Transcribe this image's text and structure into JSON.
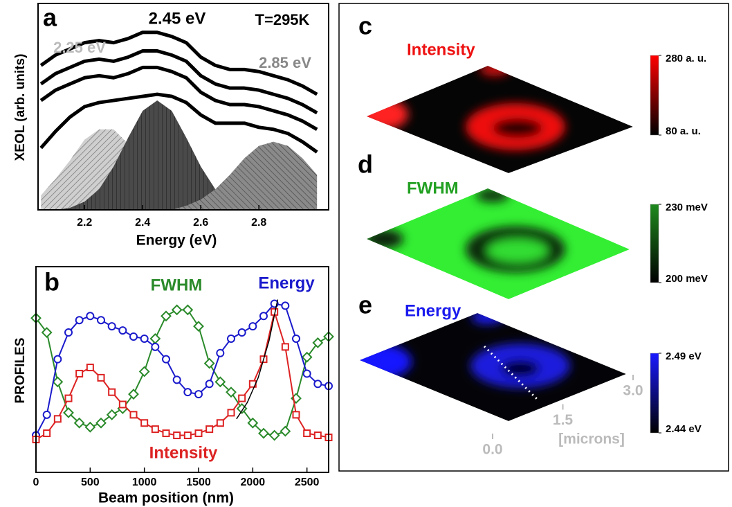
{
  "chart_data": [
    {
      "type": "line",
      "label": "a",
      "xlabel": "Energy (eV)",
      "ylabel": "XEOL (arb. units)",
      "x": [
        2.05,
        2.1,
        2.15,
        2.2,
        2.25,
        2.3,
        2.35,
        2.4,
        2.45,
        2.5,
        2.55,
        2.6,
        2.65,
        2.7,
        2.75,
        2.8,
        2.85,
        2.9,
        2.95,
        3.0
      ],
      "xlim": [
        2.04,
        3.04
      ],
      "xticks": [
        2.2,
        2.4,
        2.6,
        2.8
      ],
      "ylim": [
        0,
        1
      ],
      "series": [
        {
          "color": "#000000",
          "values": [
            0.7,
            0.75,
            0.78,
            0.81,
            0.82,
            0.81,
            0.83,
            0.86,
            0.86,
            0.84,
            0.81,
            0.74,
            0.7,
            0.68,
            0.68,
            0.67,
            0.65,
            0.63,
            0.6,
            0.56
          ]
        },
        {
          "color": "#000000",
          "values": [
            0.61,
            0.66,
            0.69,
            0.72,
            0.73,
            0.72,
            0.74,
            0.77,
            0.77,
            0.75,
            0.72,
            0.65,
            0.61,
            0.59,
            0.59,
            0.58,
            0.56,
            0.54,
            0.51,
            0.47
          ]
        },
        {
          "color": "#000000",
          "values": [
            0.53,
            0.58,
            0.61,
            0.64,
            0.65,
            0.64,
            0.66,
            0.69,
            0.69,
            0.67,
            0.64,
            0.57,
            0.53,
            0.51,
            0.51,
            0.5,
            0.48,
            0.46,
            0.43,
            0.39
          ]
        },
        {
          "color": "#000000",
          "values": [
            0.3,
            0.38,
            0.45,
            0.5,
            0.52,
            0.53,
            0.54,
            0.55,
            0.56,
            0.55,
            0.52,
            0.46,
            0.42,
            0.42,
            0.42,
            0.4,
            0.39,
            0.37,
            0.33,
            0.28
          ]
        }
      ],
      "fills": [
        {
          "color": "#cfcfcf",
          "values": [
            0.07,
            0.15,
            0.24,
            0.34,
            0.39,
            0.39,
            0.32,
            0.22,
            0.13,
            0.06,
            0.03,
            0.01,
            0,
            0,
            0,
            0,
            0,
            0,
            0,
            0
          ]
        },
        {
          "color": "#4a4a4a",
          "values": [
            0,
            0,
            0.01,
            0.04,
            0.1,
            0.21,
            0.35,
            0.48,
            0.53,
            0.48,
            0.35,
            0.21,
            0.1,
            0.04,
            0,
            0,
            0,
            0,
            0,
            0
          ]
        },
        {
          "color": "#8a8a8a",
          "values": [
            0,
            0,
            0,
            0,
            0,
            0,
            0,
            0,
            0,
            0,
            0.02,
            0.05,
            0.1,
            0.17,
            0.25,
            0.31,
            0.33,
            0.31,
            0.25,
            0.17
          ]
        }
      ],
      "annotations": [
        {
          "text": "2.45 eV",
          "color": "#000000"
        },
        {
          "text": "T=295K",
          "color": "#000000"
        },
        {
          "text": "2.25 eV",
          "color": "#bbbbbb"
        },
        {
          "text": "2.85 eV",
          "color": "#888888"
        }
      ]
    },
    {
      "type": "line",
      "label": "b",
      "xlabel": "Beam position (nm)",
      "ylabel": "PROFILES",
      "x": [
        0,
        100,
        200,
        300,
        400,
        500,
        600,
        700,
        800,
        900,
        1000,
        1100,
        1200,
        1300,
        1400,
        1500,
        1600,
        1700,
        1800,
        1900,
        2000,
        2100,
        2200,
        2300,
        2400,
        2500,
        2600,
        2700
      ],
      "xlim": [
        0,
        2700
      ],
      "xticks": [
        0,
        500,
        1000,
        1500,
        2000,
        2500
      ],
      "ylim": [
        0,
        1
      ],
      "series": [
        {
          "name": "FWHM",
          "color": "#2a8a2a",
          "marker": "diamond",
          "values": [
            0.75,
            0.68,
            0.44,
            0.29,
            0.24,
            0.22,
            0.24,
            0.28,
            0.31,
            0.38,
            0.49,
            0.65,
            0.76,
            0.79,
            0.79,
            0.71,
            0.53,
            0.44,
            0.39,
            0.31,
            0.24,
            0.19,
            0.18,
            0.2,
            0.36,
            0.56,
            0.63,
            0.66
          ]
        },
        {
          "name": "Energy",
          "color": "#1a1acc",
          "marker": "circle",
          "values": [
            0.18,
            0.28,
            0.55,
            0.68,
            0.74,
            0.76,
            0.74,
            0.71,
            0.69,
            0.66,
            0.65,
            0.61,
            0.55,
            0.45,
            0.39,
            0.38,
            0.43,
            0.58,
            0.65,
            0.68,
            0.71,
            0.76,
            0.82,
            0.81,
            0.65,
            0.48,
            0.43,
            0.42
          ]
        },
        {
          "name": "Intensity",
          "color": "#dd2222",
          "marker": "square",
          "values": [
            0.16,
            0.19,
            0.26,
            0.36,
            0.48,
            0.51,
            0.46,
            0.39,
            0.33,
            0.28,
            0.24,
            0.21,
            0.19,
            0.18,
            0.18,
            0.19,
            0.21,
            0.24,
            0.29,
            0.36,
            0.43,
            0.55,
            0.78,
            0.61,
            0.28,
            0.19,
            0.18,
            0.17
          ]
        }
      ],
      "fit": {
        "color": "#000000",
        "x": [
          1850,
          1950,
          2050,
          2150,
          2230
        ],
        "values": [
          0.26,
          0.34,
          0.46,
          0.64,
          0.84
        ]
      }
    },
    {
      "type": "surface",
      "label": "c",
      "title": "Intensity",
      "color": "#ee1111",
      "colormap": [
        "#000000",
        "#ff0000"
      ],
      "clim": [
        80,
        280
      ],
      "cticks": [
        {
          "value": 280,
          "label": "280 a. u."
        },
        {
          "value": 80,
          "label": "80 a. u."
        }
      ]
    },
    {
      "type": "surface",
      "label": "d",
      "title": "FWHM",
      "color": "#22a022",
      "colormap": [
        "#000000",
        "#1e8a1e"
      ],
      "clim": [
        200,
        230
      ],
      "cticks": [
        {
          "value": 230,
          "label": "230 meV"
        },
        {
          "value": 200,
          "label": "200 meV"
        }
      ]
    },
    {
      "type": "surface",
      "label": "e",
      "title": "Energy",
      "color": "#1a1aee",
      "colormap": [
        "#000000",
        "#1a1aff"
      ],
      "clim": [
        2.44,
        2.49
      ],
      "cticks": [
        {
          "value": 2.49,
          "label": "2.49 eV"
        },
        {
          "value": 2.44,
          "label": "2.44 eV"
        }
      ],
      "xlim": [
        0,
        3
      ],
      "xticks": [
        {
          "value": 0,
          "label": "0.0"
        },
        1.5,
        {
          "value": 3,
          "label": "3.0"
        }
      ],
      "xlabel": "[microns]"
    }
  ]
}
